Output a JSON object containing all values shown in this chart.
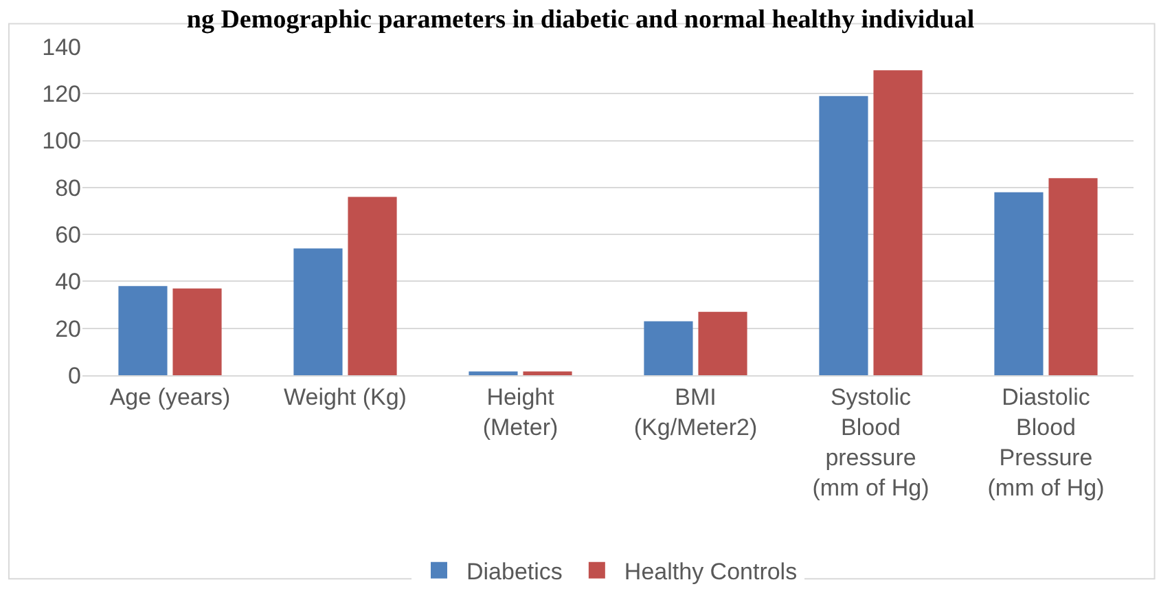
{
  "chart_data": {
    "type": "bar",
    "title": "ng Demographic parameters in diabetic and normal healthy individual",
    "categories": [
      "Age (years)",
      "Weight (Kg)",
      "Height (Meter)",
      "BMI (Kg/Meter2)",
      "Systolic Blood pressure (mm of Hg)",
      "Diastolic Blood Pressure (mm of Hg)"
    ],
    "series": [
      {
        "name": "Diabetics",
        "color": "#4f81bd",
        "values": [
          38,
          54,
          1.6,
          23,
          119,
          78
        ]
      },
      {
        "name": "Healthy Controls",
        "color": "#c0504d",
        "values": [
          37,
          76,
          1.6,
          27,
          130,
          84
        ]
      }
    ],
    "ylim": [
      0,
      140
    ],
    "yticks": [
      0,
      20,
      40,
      60,
      80,
      100,
      120,
      140
    ],
    "grid": "y",
    "legend": "bottom"
  }
}
